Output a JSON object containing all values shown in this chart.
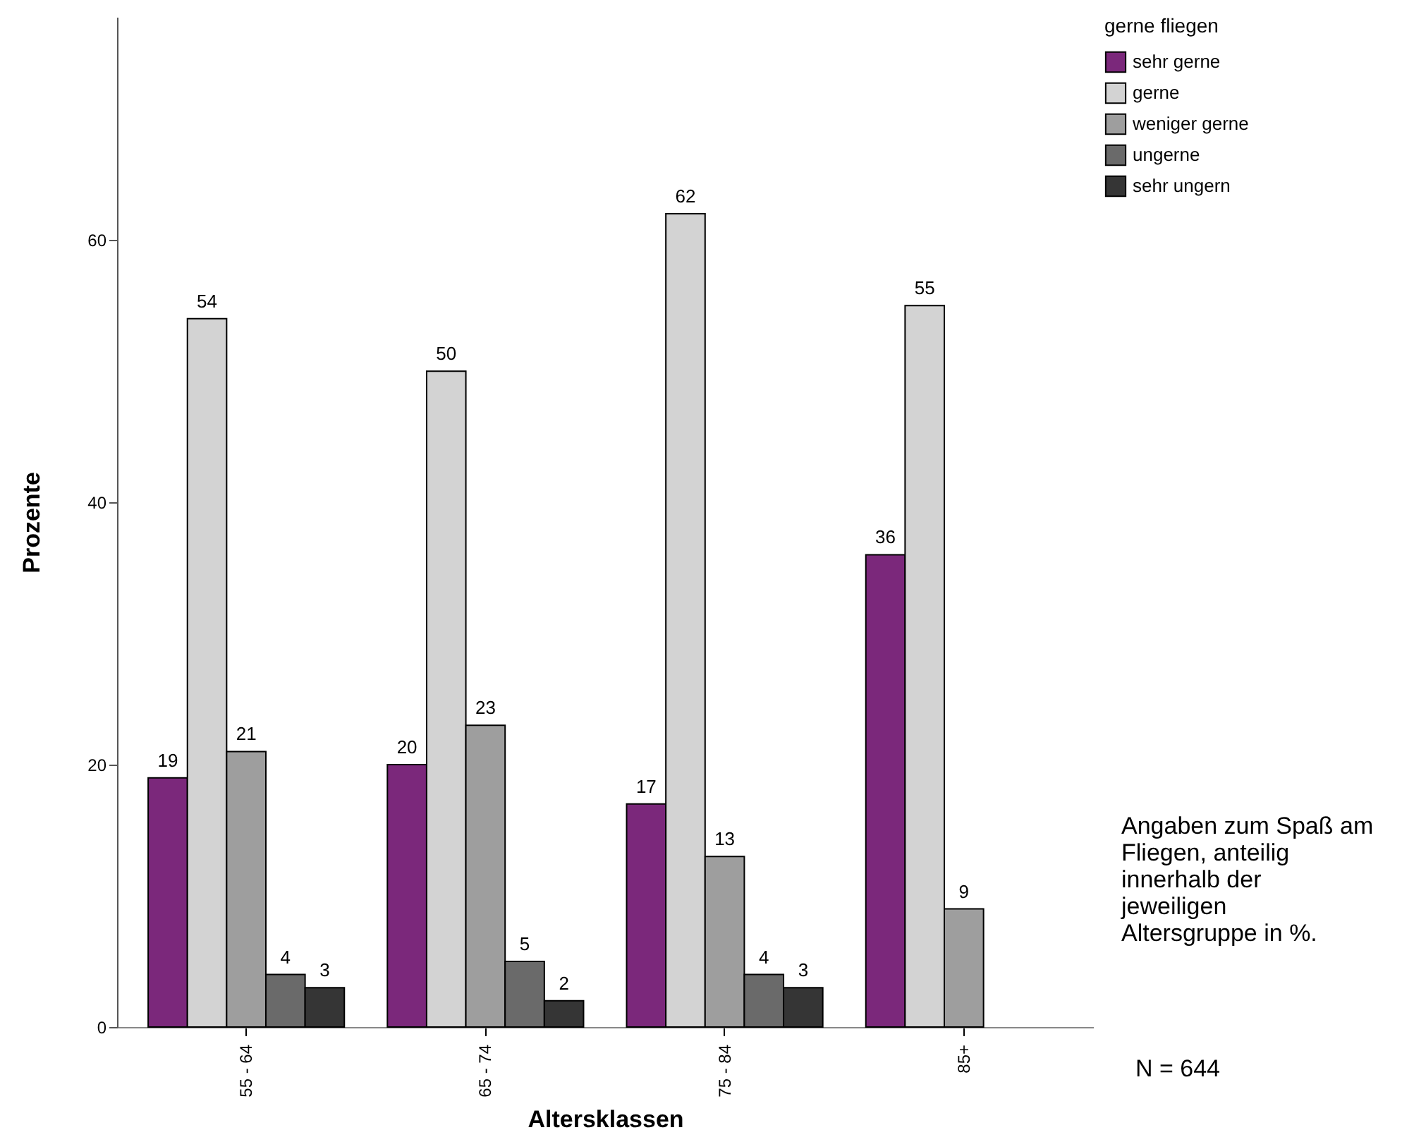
{
  "chart_data": {
    "type": "bar",
    "xlabel": "Altersklassen",
    "ylabel": "Prozente",
    "legend_title": "gerne fliegen",
    "categories": [
      "55 - 64",
      "65 - 74",
      "75 - 84",
      "85+"
    ],
    "series": [
      {
        "name": "sehr gerne",
        "color": "#7b287b",
        "values": [
          19,
          20,
          17,
          36
        ]
      },
      {
        "name": "gerne",
        "color": "#d3d3d3",
        "values": [
          54,
          50,
          62,
          55
        ]
      },
      {
        "name": "weniger gerne",
        "color": "#9e9e9e",
        "values": [
          21,
          23,
          13,
          9
        ]
      },
      {
        "name": "ungerne",
        "color": "#6a6a6a",
        "values": [
          4,
          5,
          4,
          null
        ]
      },
      {
        "name": "sehr ungern",
        "color": "#353535",
        "values": [
          3,
          2,
          3,
          null
        ]
      }
    ],
    "ylim": [
      0,
      77
    ],
    "yticks": [
      0,
      20,
      40,
      60
    ],
    "grid": false,
    "legend": "top right",
    "data_labels": true,
    "annotations": [
      "Angaben zum Spaß am Fliegen, anteilig innerhalb der jeweiligen Altersgruppe in %.",
      "N = 644"
    ]
  }
}
